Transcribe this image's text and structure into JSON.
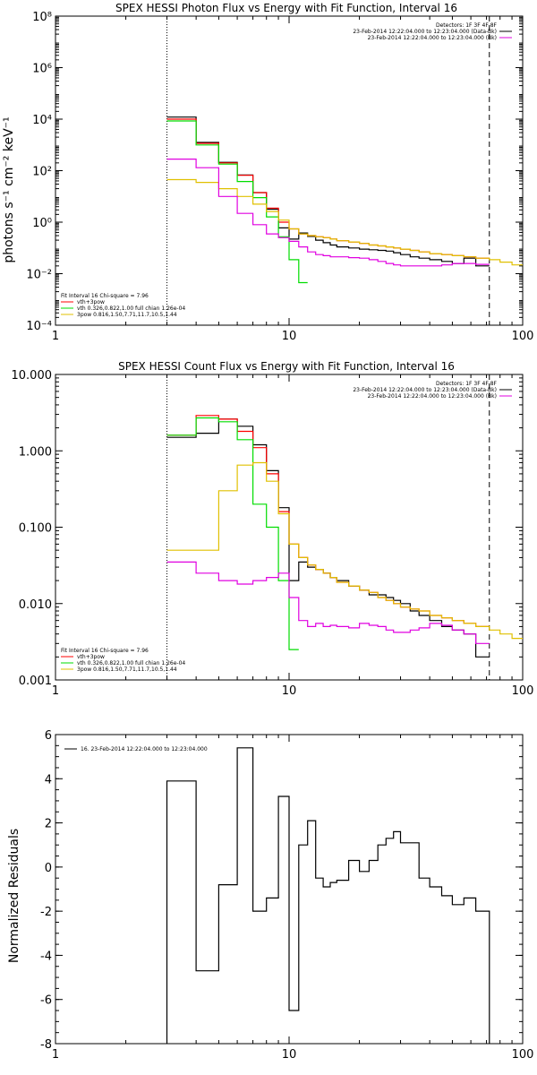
{
  "colors": {
    "black": "#000000",
    "red": "#ff0000",
    "green": "#00dd00",
    "yellow": "#e0c000",
    "magenta": "#e000e0"
  },
  "chart_data": [
    {
      "type": "line",
      "title": "SPEX HESSI Photon Flux vs Energy with Fit Function, Interval 16",
      "xlabel": "",
      "ylabel": "photons s⁻¹ cm⁻² keV⁻¹",
      "xscale": "log",
      "yscale": "log",
      "xlim": [
        1,
        100
      ],
      "ylim": [
        0.0001,
        100000000
      ],
      "x_ticks": [
        1,
        10,
        100
      ],
      "x_tick_labels": [
        "1",
        "10",
        "100"
      ],
      "y_ticks": [
        0.0001,
        0.01,
        1,
        100,
        10000,
        1000000
      ],
      "y_tick_labels": [
        "10⁻⁴",
        "10⁻²",
        "10⁰",
        "10²",
        "10⁴",
        "10⁶"
      ],
      "y_tick_top_label": "10⁸",
      "vlines": [
        {
          "x": 3,
          "style": "dotted"
        },
        {
          "x": 72,
          "style": "dashed"
        }
      ],
      "legend_topright": [
        {
          "text": "Detectors: 1F 3F 4F 8F",
          "color": "#000000"
        },
        {
          "text": "23-Feb-2014 12:22:04.000 to 12:23:04.000 (Data-Bk)",
          "color": "#000000"
        },
        {
          "text": "23-Feb-2014 12:22:04.000 to 12:23:04.000 (Bk)",
          "color": "#e000e0"
        }
      ],
      "legend_bottomleft": [
        {
          "text": "Fit Interval 16   Chi-square = 7.96",
          "color": "#000000"
        },
        {
          "text": "vth+3pow",
          "color": "#ff0000"
        },
        {
          "text": "vth 0.326,0.822,1.00  full chian 1.26e-04",
          "color": "#00dd00"
        },
        {
          "text": "3pow 0.816,1.50,7.71,11.7,10.5,1.44",
          "color": "#e0c000"
        }
      ],
      "series": [
        {
          "color": "#000000",
          "style": "step",
          "edges": [
            3,
            4,
            5,
            6,
            7,
            8,
            9,
            10,
            11,
            12,
            13,
            14,
            15,
            16,
            18,
            20,
            22,
            24,
            26,
            28,
            30,
            33,
            36,
            40,
            45,
            50,
            56,
            63,
            72
          ],
          "values": [
            12000,
            1250,
            210,
            68,
            14,
            3.2,
            0.6,
            0.22,
            0.38,
            0.28,
            0.2,
            0.16,
            0.13,
            0.11,
            0.1,
            0.09,
            0.085,
            0.08,
            0.075,
            0.065,
            0.055,
            0.045,
            0.04,
            0.035,
            0.03,
            0.025,
            0.04,
            0.02
          ]
        },
        {
          "color": "#ff0000",
          "style": "step",
          "edges": [
            3,
            4,
            5,
            6,
            7,
            8,
            9,
            10,
            11,
            12,
            13,
            14,
            15,
            16,
            18,
            20,
            22,
            24,
            26,
            28,
            30,
            33,
            36,
            40,
            45,
            50,
            56,
            63,
            72
          ],
          "values": [
            10000,
            1150,
            200,
            66,
            14,
            3.5,
            1.0,
            0.55,
            0.35,
            0.3,
            0.27,
            0.25,
            0.22,
            0.19,
            0.17,
            0.15,
            0.13,
            0.12,
            0.11,
            0.1,
            0.09,
            0.08,
            0.07,
            0.06,
            0.055,
            0.05,
            0.045,
            0.04
          ]
        },
        {
          "color": "#00dd00",
          "style": "step",
          "edges": [
            3,
            4,
            5,
            6,
            7,
            8,
            9,
            10,
            11,
            12
          ],
          "values": [
            8500,
            1000,
            180,
            38,
            9,
            1.6,
            0.27,
            0.035,
            0.0045
          ]
        },
        {
          "color": "#e0c000",
          "style": "step",
          "edges": [
            3,
            4,
            5,
            6,
            7,
            8,
            9,
            10,
            11,
            12,
            13,
            14,
            15,
            16,
            18,
            20,
            22,
            24,
            26,
            28,
            30,
            33,
            36,
            40,
            45,
            50,
            56,
            63,
            72,
            80,
            90,
            100
          ],
          "values": [
            45,
            35,
            20,
            10,
            5,
            2.6,
            1.2,
            0.55,
            0.35,
            0.3,
            0.27,
            0.25,
            0.22,
            0.19,
            0.17,
            0.15,
            0.13,
            0.12,
            0.11,
            0.1,
            0.09,
            0.08,
            0.07,
            0.06,
            0.055,
            0.05,
            0.045,
            0.04,
            0.035,
            0.028,
            0.022
          ]
        },
        {
          "color": "#e000e0",
          "style": "step",
          "edges": [
            3,
            4,
            5,
            6,
            7,
            8,
            9,
            10,
            11,
            12,
            13,
            14,
            15,
            16,
            18,
            20,
            22,
            24,
            26,
            28,
            30,
            33,
            36,
            40,
            45,
            50,
            56,
            63,
            72
          ],
          "values": [
            280,
            130,
            10,
            2.2,
            0.8,
            0.35,
            0.25,
            0.18,
            0.11,
            0.07,
            0.055,
            0.05,
            0.045,
            0.045,
            0.042,
            0.04,
            0.035,
            0.03,
            0.025,
            0.022,
            0.02,
            0.02,
            0.02,
            0.02,
            0.022,
            0.025,
            0.025,
            0.023
          ]
        }
      ]
    },
    {
      "type": "line",
      "title": "SPEX HESSI Count Flux vs Energy with Fit Function, Interval 16",
      "xlabel": "",
      "ylabel": "",
      "xscale": "log",
      "yscale": "log",
      "xlim": [
        1,
        100
      ],
      "ylim": [
        0.001,
        10
      ],
      "x_ticks": [
        1,
        10,
        100
      ],
      "x_tick_labels": [
        "1",
        "10",
        "100"
      ],
      "y_ticks": [
        0.001,
        0.01,
        0.1,
        1,
        10
      ],
      "y_tick_labels": [
        "0.001",
        "0.010",
        "0.100",
        "1.000",
        "10.000"
      ],
      "vlines": [
        {
          "x": 3,
          "style": "dotted"
        },
        {
          "x": 72,
          "style": "dashed"
        }
      ],
      "legend_topright": [
        {
          "text": "Detectors: 1F 3F 4F 8F",
          "color": "#000000"
        },
        {
          "text": "23-Feb-2014 12:22:04.000 to 12:23:04.000 (Data-Bk)",
          "color": "#000000"
        },
        {
          "text": "23-Feb-2014 12:22:04.000 to 12:23:04.000 (Bk)",
          "color": "#e000e0"
        }
      ],
      "legend_bottomleft": [
        {
          "text": "Fit Interval 16   Chi-square = 7.96",
          "color": "#000000"
        },
        {
          "text": "vth+3pow",
          "color": "#ff0000"
        },
        {
          "text": "vth 0.326,0.822,1.00  full chian 1.26e-04",
          "color": "#00dd00"
        },
        {
          "text": "3pow 0.816,1.50,7.71,11.7,10.5,1.44",
          "color": "#e0c000"
        }
      ],
      "series": [
        {
          "color": "#000000",
          "style": "step",
          "edges": [
            3,
            4,
            5,
            6,
            7,
            8,
            9,
            10,
            11,
            12,
            13,
            14,
            15,
            16,
            18,
            20,
            22,
            24,
            26,
            28,
            30,
            33,
            36,
            40,
            45,
            50,
            56,
            63,
            72
          ],
          "values": [
            1.5,
            1.7,
            2.6,
            2.1,
            1.2,
            0.55,
            0.18,
            0.02,
            0.035,
            0.03,
            0.028,
            0.025,
            0.022,
            0.02,
            0.017,
            0.015,
            0.013,
            0.013,
            0.012,
            0.011,
            0.01,
            0.008,
            0.007,
            0.006,
            0.005,
            0.0045,
            0.004,
            0.002
          ]
        },
        {
          "color": "#ff0000",
          "style": "step",
          "edges": [
            3,
            4,
            5,
            6,
            7,
            8,
            9,
            10,
            11,
            12,
            13,
            14,
            15,
            16,
            18,
            20,
            22,
            24,
            26,
            28,
            30,
            33,
            36,
            40,
            45,
            50,
            56,
            63,
            72
          ],
          "values": [
            1.6,
            2.9,
            2.6,
            1.8,
            1.1,
            0.5,
            0.16,
            0.06,
            0.04,
            0.032,
            0.028,
            0.025,
            0.022,
            0.019,
            0.017,
            0.015,
            0.014,
            0.012,
            0.011,
            0.01,
            0.009,
            0.0085,
            0.008,
            0.007,
            0.0065,
            0.006,
            0.0055,
            0.005
          ]
        },
        {
          "color": "#00dd00",
          "style": "step",
          "edges": [
            3,
            4,
            5,
            6,
            7,
            8,
            9,
            10,
            11
          ],
          "values": [
            1.6,
            2.7,
            2.4,
            1.4,
            0.2,
            0.1,
            0.02,
            0.0025
          ]
        },
        {
          "color": "#e0c000",
          "style": "step",
          "edges": [
            3,
            4,
            5,
            6,
            7,
            8,
            9,
            10,
            11,
            12,
            13,
            14,
            15,
            16,
            18,
            20,
            22,
            24,
            26,
            28,
            30,
            33,
            36,
            40,
            45,
            50,
            56,
            63,
            72,
            80,
            90,
            100
          ],
          "values": [
            0.05,
            0.05,
            0.3,
            0.65,
            0.7,
            0.4,
            0.15,
            0.06,
            0.04,
            0.032,
            0.028,
            0.025,
            0.022,
            0.019,
            0.017,
            0.015,
            0.014,
            0.012,
            0.011,
            0.01,
            0.009,
            0.0085,
            0.008,
            0.007,
            0.0065,
            0.006,
            0.0055,
            0.005,
            0.0045,
            0.004,
            0.0035
          ]
        },
        {
          "color": "#e000e0",
          "style": "step",
          "edges": [
            3,
            4,
            5,
            6,
            7,
            8,
            9,
            10,
            11,
            12,
            13,
            14,
            15,
            16,
            18,
            20,
            22,
            24,
            26,
            28,
            30,
            33,
            36,
            40,
            45,
            50,
            56,
            63,
            72
          ],
          "values": [
            0.035,
            0.025,
            0.02,
            0.018,
            0.02,
            0.022,
            0.025,
            0.012,
            0.006,
            0.005,
            0.0055,
            0.005,
            0.0052,
            0.005,
            0.0048,
            0.0055,
            0.0052,
            0.005,
            0.0045,
            0.0042,
            0.0042,
            0.0045,
            0.0048,
            0.0055,
            0.0052,
            0.0045,
            0.004,
            0.003
          ]
        }
      ]
    },
    {
      "type": "line",
      "title": "",
      "xlabel": "",
      "ylabel": "Normalized Residuals",
      "xscale": "log",
      "yscale": "linear",
      "xlim": [
        1,
        100
      ],
      "ylim": [
        -8,
        6
      ],
      "x_ticks": [
        1,
        10,
        100
      ],
      "x_tick_labels": [
        "1",
        "10",
        "100"
      ],
      "y_ticks": [
        -8,
        -6,
        -4,
        -2,
        0,
        2,
        4,
        6
      ],
      "y_tick_labels": [
        "-8",
        "-6",
        "-4",
        "-2",
        "0",
        "2",
        "4",
        "6"
      ],
      "legend_topleft": [
        {
          "text": "16. 23-Feb-2014 12:22:04.000 to 12:23:04.000",
          "color": "#000000"
        }
      ],
      "series": [
        {
          "color": "#000000",
          "style": "step",
          "drop_to_floor": true,
          "edges": [
            3,
            4,
            5,
            6,
            7,
            8,
            9,
            10,
            11,
            12,
            13,
            14,
            15,
            16,
            18,
            20,
            22,
            24,
            26,
            28,
            30,
            33,
            36,
            40,
            45,
            50,
            56,
            63,
            72
          ],
          "values": [
            3.9,
            -4.7,
            -0.8,
            5.4,
            -2.0,
            -1.4,
            3.2,
            -6.5,
            1.0,
            2.1,
            -0.5,
            -0.9,
            -0.7,
            -0.6,
            0.3,
            -0.2,
            0.3,
            1.0,
            1.3,
            1.6,
            1.1,
            1.1,
            -0.5,
            -0.9,
            -1.3,
            -1.7,
            -1.4,
            -2.0
          ]
        }
      ]
    }
  ]
}
